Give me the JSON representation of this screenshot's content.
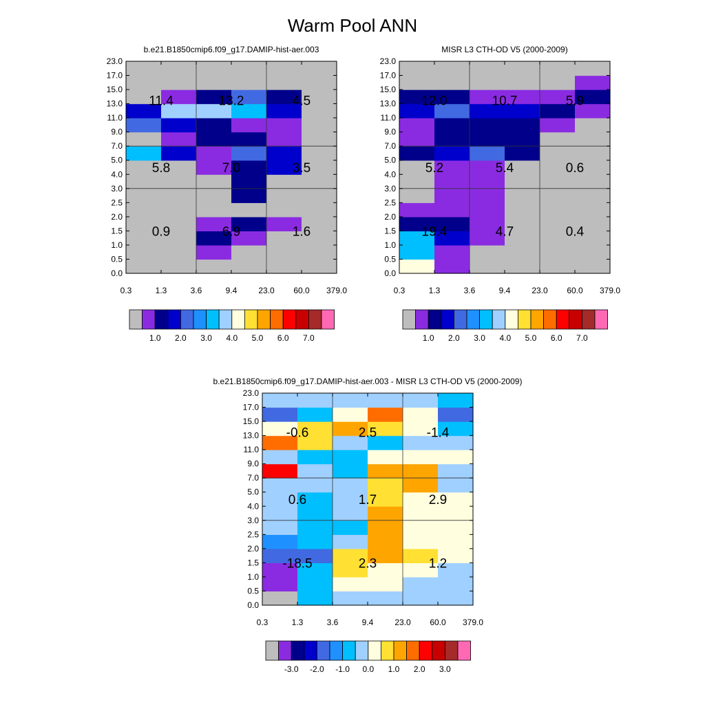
{
  "title": "Warm Pool ANN",
  "chart_data": [
    {
      "type": "heatmap",
      "title": "b.e21.B1850cmip6.f09_g17.DAMIP-hist-aer.003",
      "x_tick_labels": [
        "0.3",
        "1.3",
        "3.6",
        "9.4",
        "23.0",
        "60.0",
        "379.0"
      ],
      "y_tick_labels": [
        "0.0",
        "0.5",
        "1.0",
        "1.5",
        "2.0",
        "2.5",
        "3.0",
        "4.0",
        "5.0",
        "7.0",
        "9.0",
        "11.0",
        "13.0",
        "15.0",
        "17.0",
        "23.0"
      ],
      "cell_levels": [
        [
          0,
          0,
          0,
          0,
          0,
          0
        ],
        [
          0,
          0,
          1,
          0,
          0,
          0
        ],
        [
          0,
          0,
          2,
          1,
          0,
          0
        ],
        [
          0,
          0,
          1,
          2,
          1,
          0
        ],
        [
          0,
          0,
          0,
          0,
          0,
          0
        ],
        [
          0,
          0,
          0,
          2,
          0,
          0
        ],
        [
          0,
          0,
          0,
          2,
          0,
          0
        ],
        [
          0,
          0,
          1,
          2,
          3,
          0
        ],
        [
          6,
          3,
          1,
          4,
          3,
          0
        ],
        [
          0,
          1,
          2,
          2,
          1,
          0
        ],
        [
          4,
          3,
          2,
          1,
          1,
          0
        ],
        [
          3,
          7,
          7,
          6,
          3,
          0
        ],
        [
          0,
          1,
          2,
          4,
          2,
          0
        ],
        [
          0,
          0,
          0,
          0,
          0,
          0
        ],
        [
          0,
          0,
          0,
          0,
          0,
          0
        ]
      ],
      "annotations": [
        {
          "value": "0.9",
          "col": 0,
          "y": 1.5
        },
        {
          "value": "6.9",
          "col": 1,
          "y": 1.5
        },
        {
          "value": "1.6",
          "col": 2,
          "y": 1.5
        },
        {
          "value": "5.8",
          "col": 0,
          "y": 4.5
        },
        {
          "value": "7.0",
          "col": 1,
          "y": 4.5
        },
        {
          "value": "3.5",
          "col": 2,
          "y": 4.5
        },
        {
          "value": "11.4",
          "col": 0,
          "y": 13.5
        },
        {
          "value": "13.2",
          "col": 1,
          "y": 13.5
        },
        {
          "value": "4.5",
          "col": 2,
          "y": 13.5
        }
      ],
      "colorbar": {
        "colors": [
          "#bdbdbd",
          "#8a2be2",
          "#00008b",
          "#0000cd",
          "#4169e1",
          "#1e90ff",
          "#00bfff",
          "#a0d0ff",
          "#ffffe0",
          "#ffe033",
          "#ffa500",
          "#ff6d00",
          "#ff0000",
          "#c80000",
          "#a52a2a",
          "#ff69b4"
        ],
        "labels": [
          "1.0",
          "2.0",
          "3.0",
          "4.0",
          "5.0",
          "6.0",
          "7.0"
        ]
      }
    },
    {
      "type": "heatmap",
      "title": "MISR L3 CTH-OD V5 (2000-2009)",
      "x_tick_labels": [
        "0.3",
        "1.3",
        "3.6",
        "9.4",
        "23.0",
        "60.0",
        "379.0"
      ],
      "y_tick_labels": [
        "0.0",
        "0.5",
        "1.0",
        "1.5",
        "2.0",
        "2.5",
        "3.0",
        "4.0",
        "5.0",
        "7.0",
        "9.0",
        "11.0",
        "13.0",
        "15.0",
        "17.0",
        "23.0"
      ],
      "cell_levels": [
        [
          8,
          1,
          0,
          0,
          0,
          0
        ],
        [
          6,
          1,
          0,
          0,
          0,
          0
        ],
        [
          6,
          3,
          1,
          0,
          0,
          0
        ],
        [
          2,
          2,
          1,
          0,
          0,
          0
        ],
        [
          1,
          1,
          1,
          0,
          0,
          0
        ],
        [
          0,
          1,
          1,
          0,
          0,
          0
        ],
        [
          0,
          1,
          1,
          0,
          0,
          0
        ],
        [
          0,
          1,
          1,
          0,
          0,
          0
        ],
        [
          2,
          3,
          4,
          2,
          0,
          0
        ],
        [
          1,
          2,
          2,
          2,
          0,
          0
        ],
        [
          1,
          2,
          2,
          2,
          1,
          0
        ],
        [
          3,
          4,
          3,
          3,
          2,
          1
        ],
        [
          2,
          2,
          1,
          1,
          1,
          2
        ],
        [
          0,
          0,
          0,
          0,
          0,
          1
        ],
        [
          0,
          0,
          0,
          0,
          0,
          0
        ]
      ],
      "annotations": [
        {
          "value": "19.4",
          "col": 0,
          "y": 1.5
        },
        {
          "value": "4.7",
          "col": 1,
          "y": 1.5
        },
        {
          "value": "0.4",
          "col": 2,
          "y": 1.5
        },
        {
          "value": "5.2",
          "col": 0,
          "y": 4.5
        },
        {
          "value": "5.4",
          "col": 1,
          "y": 4.5
        },
        {
          "value": "0.6",
          "col": 2,
          "y": 4.5
        },
        {
          "value": "12.0",
          "col": 0,
          "y": 13.5
        },
        {
          "value": "10.7",
          "col": 1,
          "y": 13.5
        },
        {
          "value": "5.9",
          "col": 2,
          "y": 13.5
        }
      ],
      "colorbar": {
        "colors": [
          "#bdbdbd",
          "#8a2be2",
          "#00008b",
          "#0000cd",
          "#4169e1",
          "#1e90ff",
          "#00bfff",
          "#a0d0ff",
          "#ffffe0",
          "#ffe033",
          "#ffa500",
          "#ff6d00",
          "#ff0000",
          "#c80000",
          "#a52a2a",
          "#ff69b4"
        ],
        "labels": [
          "1.0",
          "2.0",
          "3.0",
          "4.0",
          "5.0",
          "6.0",
          "7.0"
        ]
      }
    },
    {
      "type": "heatmap",
      "title": "b.e21.B1850cmip6.f09_g17.DAMIP-hist-aer.003 - MISR L3 CTH-OD V5 (2000-2009)",
      "x_tick_labels": [
        "0.3",
        "1.3",
        "3.6",
        "9.4",
        "23.0",
        "60.0",
        "379.0"
      ],
      "y_tick_labels": [
        "0.0",
        "0.5",
        "1.0",
        "1.5",
        "2.0",
        "2.5",
        "3.0",
        "4.0",
        "5.0",
        "7.0",
        "9.0",
        "11.0",
        "13.0",
        "15.0",
        "17.0",
        "23.0"
      ],
      "cell_levels": [
        [
          0,
          6,
          7,
          7,
          7,
          7
        ],
        [
          1,
          6,
          8,
          8,
          7,
          7
        ],
        [
          1,
          6,
          9,
          8,
          8,
          7
        ],
        [
          4,
          4,
          9,
          10,
          9,
          8
        ],
        [
          5,
          6,
          7,
          10,
          8,
          8
        ],
        [
          7,
          6,
          6,
          10,
          8,
          8
        ],
        [
          7,
          6,
          7,
          10,
          8,
          8
        ],
        [
          7,
          6,
          7,
          9,
          8,
          8
        ],
        [
          7,
          7,
          7,
          9,
          10,
          7
        ],
        [
          12,
          7,
          6,
          10,
          10,
          7
        ],
        [
          7,
          6,
          6,
          8,
          8,
          8
        ],
        [
          11,
          9,
          7,
          6,
          7,
          7
        ],
        [
          8,
          9,
          10,
          9,
          8,
          6
        ],
        [
          4,
          6,
          8,
          11,
          8,
          4
        ],
        [
          7,
          7,
          7,
          7,
          7,
          6
        ]
      ],
      "annotations": [
        {
          "value": "-18.5",
          "col": 0,
          "y": 1.5
        },
        {
          "value": "2.3",
          "col": 1,
          "y": 1.5
        },
        {
          "value": "1.2",
          "col": 2,
          "y": 1.5
        },
        {
          "value": "0.6",
          "col": 0,
          "y": 4.5
        },
        {
          "value": "1.7",
          "col": 1,
          "y": 4.5
        },
        {
          "value": "2.9",
          "col": 2,
          "y": 4.5
        },
        {
          "value": "-0.6",
          "col": 0,
          "y": 13.5
        },
        {
          "value": "2.5",
          "col": 1,
          "y": 13.5
        },
        {
          "value": "-1.4",
          "col": 2,
          "y": 13.5
        }
      ],
      "colorbar": {
        "colors": [
          "#bdbdbd",
          "#8a2be2",
          "#00008b",
          "#0000cd",
          "#4169e1",
          "#1e90ff",
          "#00bfff",
          "#a0d0ff",
          "#ffffe0",
          "#ffe033",
          "#ffa500",
          "#ff6d00",
          "#ff0000",
          "#c80000",
          "#a52a2a",
          "#ff69b4"
        ],
        "labels": [
          "-3.0",
          "-2.0",
          "-1.0",
          "0.0",
          "1.0",
          "2.0",
          "3.0"
        ]
      }
    }
  ]
}
